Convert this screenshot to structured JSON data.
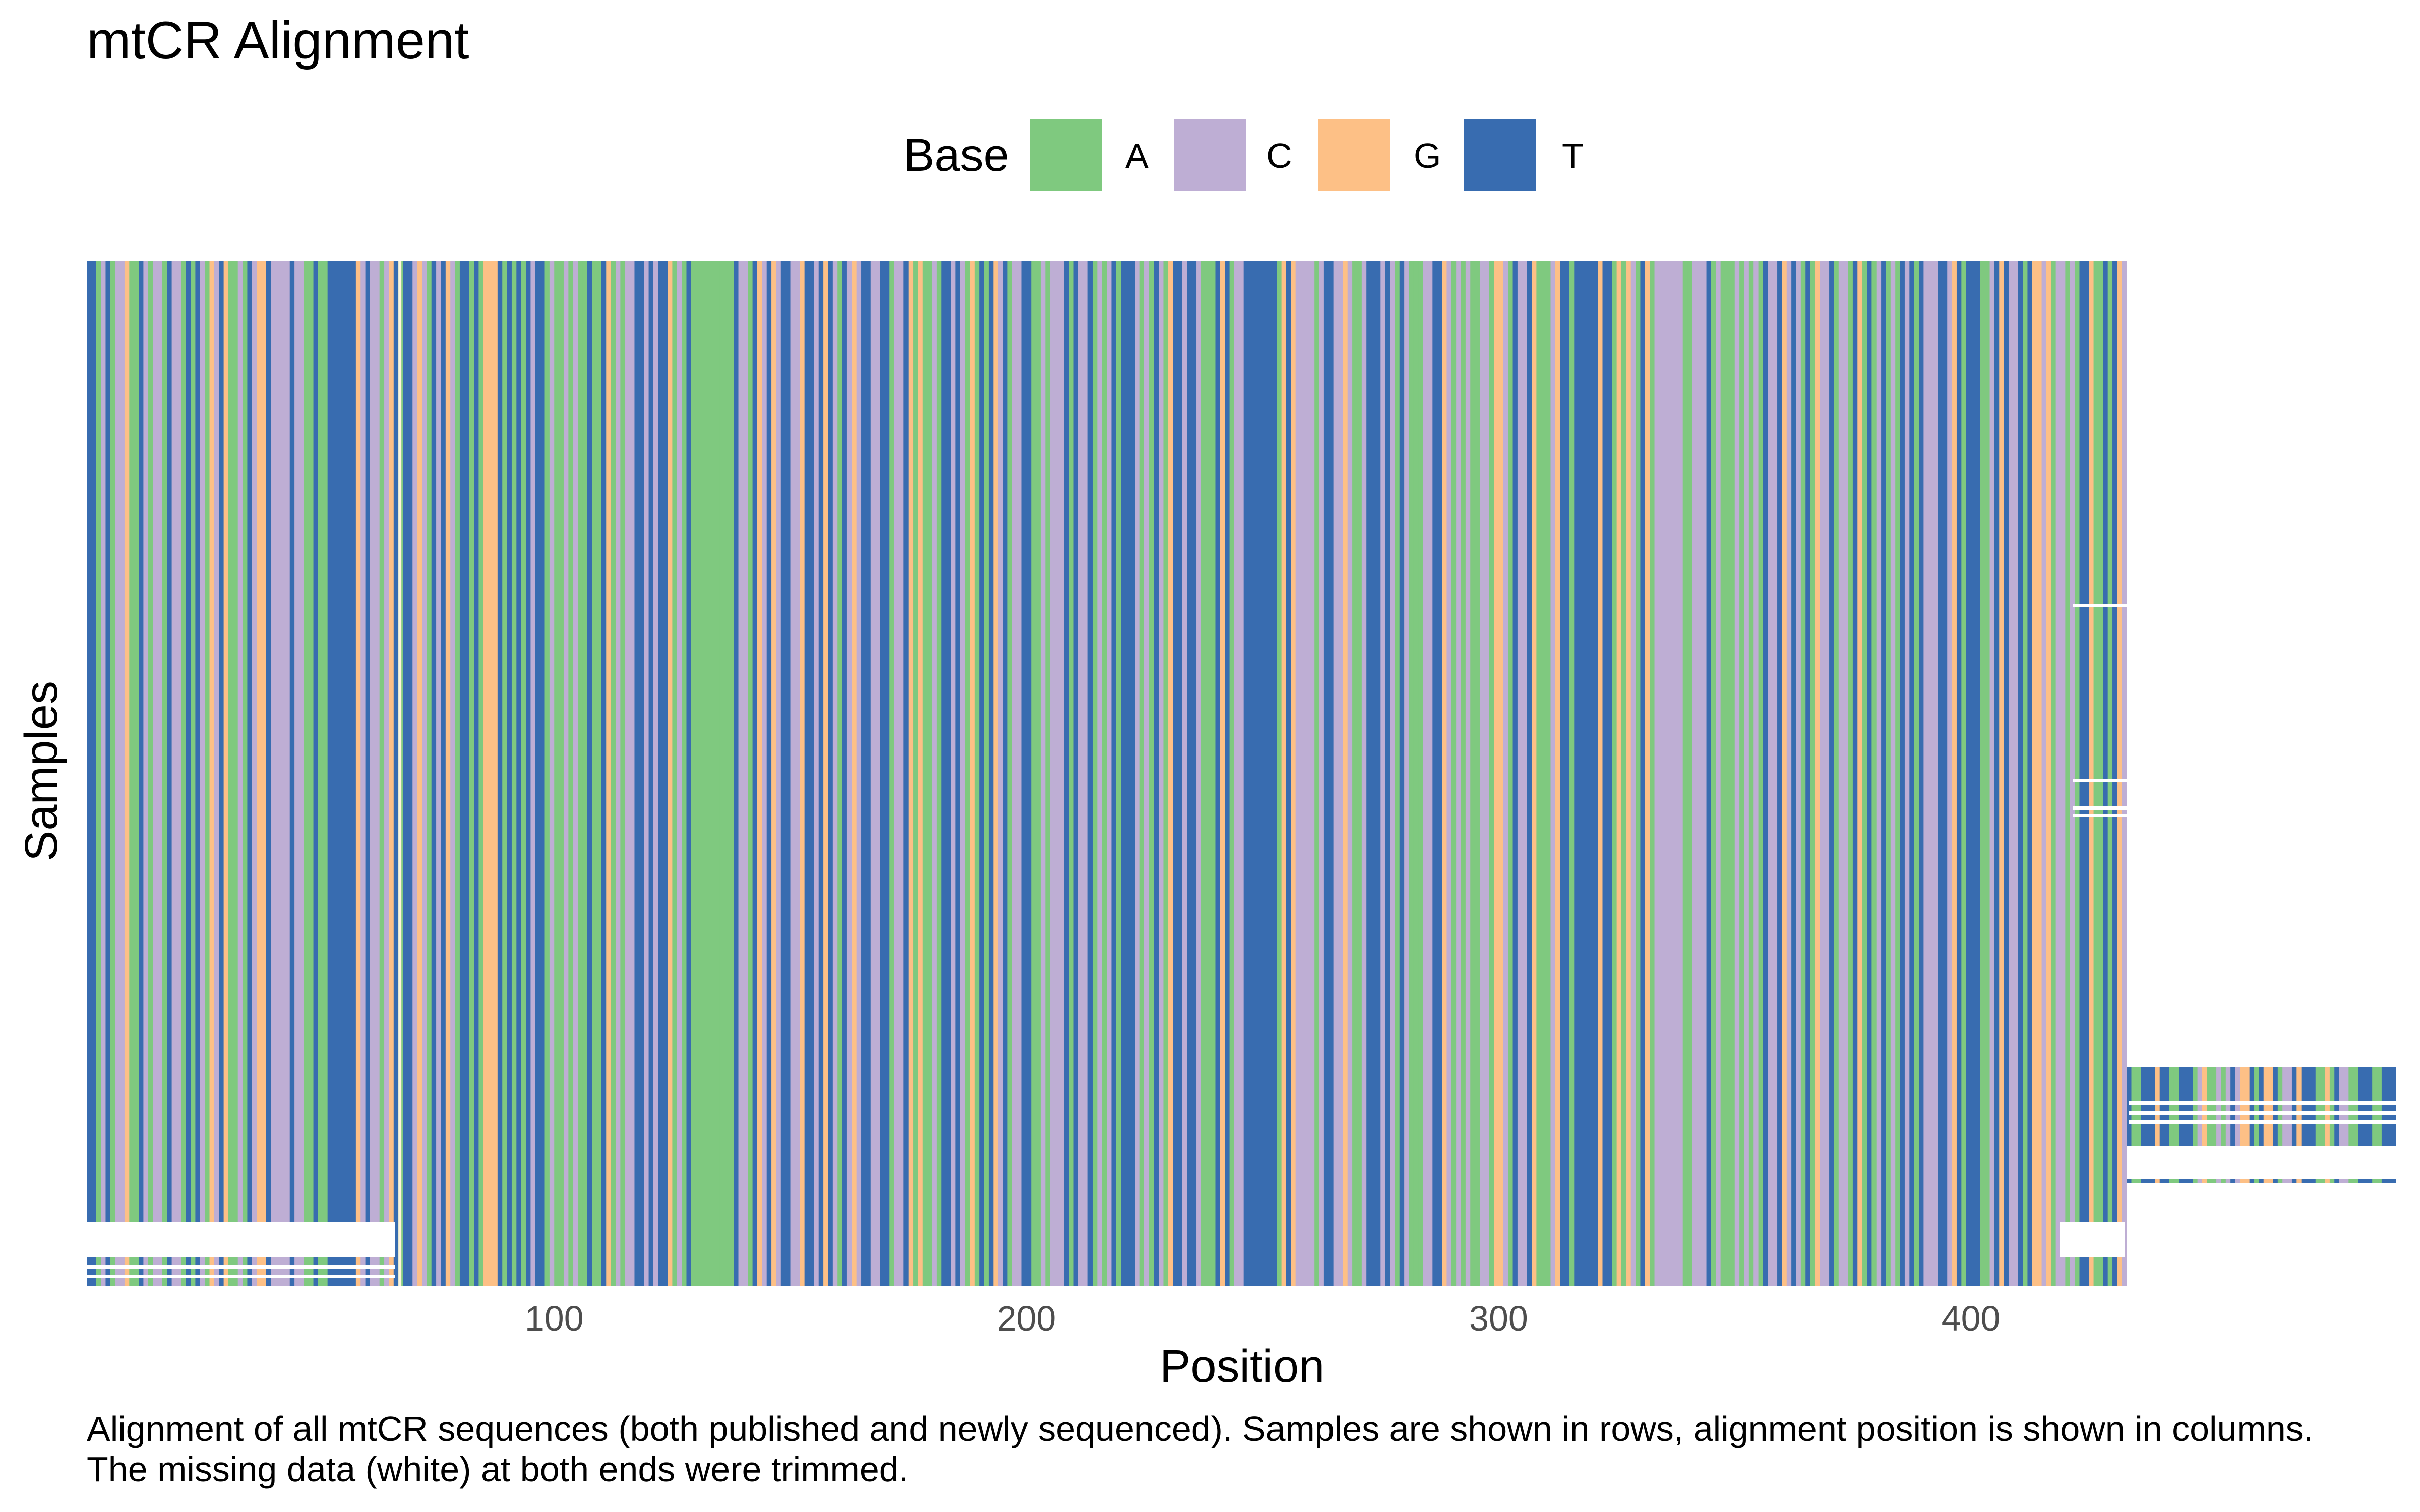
{
  "chart_data": {
    "type": "heatmap",
    "title": "mtCR Alignment",
    "xlabel": "Position",
    "ylabel": "Samples",
    "x_ticks": [
      "100",
      "200",
      "300",
      "400"
    ],
    "x_tick_values": [
      100,
      200,
      300,
      400
    ],
    "xlim": [
      1,
      489
    ],
    "n_positions_main": 432,
    "legend": {
      "title": "Base",
      "placement": "top",
      "entries": [
        {
          "label": "A",
          "color": "#7fc97f"
        },
        {
          "label": "C",
          "color": "#beaed4"
        },
        {
          "label": "G",
          "color": "#fdc086"
        },
        {
          "label": "T",
          "color": "#386cb0"
        }
      ]
    },
    "missing_color": "#ffffff",
    "grid": false
  },
  "caption": {
    "line1": "Alignment of all mtCR sequences (both published and newly sequenced). Samples are shown in rows, alignment position is shown in columns.",
    "line2": "The missing data (white) at both ends were trimmed."
  }
}
